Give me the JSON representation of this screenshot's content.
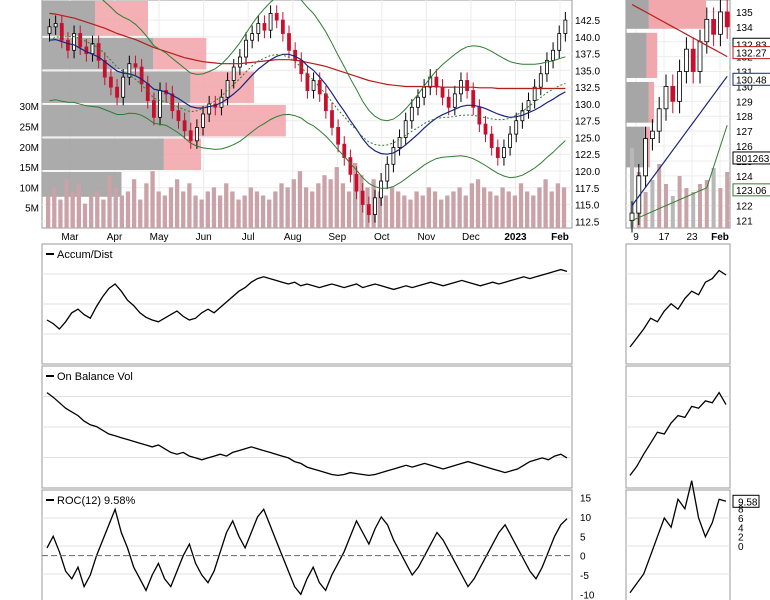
{
  "chart_data": {
    "type": "financial-multi-panel",
    "price_panel": {
      "y_ticks_right": [
        "142.5",
        "140.0",
        "137.5",
        "135.0",
        "132.5",
        "130.0",
        "127.5",
        "125.0",
        "122.5",
        "120.0",
        "117.5",
        "115.0",
        "112.5"
      ],
      "ylim": [
        111.5,
        145.5
      ],
      "volume_ticks_left": [
        "30M",
        "25M",
        "20M",
        "15M",
        "10M",
        "5M"
      ],
      "x_labels": [
        "Mar",
        "Apr",
        "May",
        "Jun",
        "Jul",
        "Aug",
        "Sep",
        "Oct",
        "Nov",
        "Dec",
        "2023",
        "Feb"
      ],
      "volume_by_price": [
        {
          "price_low": 140.0,
          "price_high": 145.5,
          "up": 0.1,
          "down": 0.2
        },
        {
          "price_low": 135.0,
          "price_high": 140.0,
          "up": 0.21,
          "down": 0.31
        },
        {
          "price_low": 130.0,
          "price_high": 135.0,
          "up": 0.28,
          "down": 0.4
        },
        {
          "price_low": 125.0,
          "price_high": 130.0,
          "up": 0.28,
          "down": 0.46
        },
        {
          "price_low": 120.0,
          "price_high": 125.0,
          "up": 0.23,
          "down": 0.3
        },
        {
          "price_low": 116.0,
          "price_high": 120.0,
          "up": 0.15,
          "down": 0.1
        }
      ],
      "close": [
        141.5,
        142.0,
        139.5,
        138.0,
        140.5,
        138.5,
        137.5,
        139.0,
        136.5,
        134.0,
        132.5,
        131.0,
        134.0,
        136.0,
        135.5,
        133.0,
        130.5,
        128.0,
        132.0,
        131.5,
        129.0,
        127.5,
        126.0,
        124.5,
        126.5,
        128.5,
        130.0,
        129.5,
        131.0,
        133.5,
        135.5,
        137.0,
        139.5,
        140.5,
        142.0,
        141.0,
        143.5,
        142.5,
        140.5,
        138.0,
        136.5,
        134.5,
        132.0,
        133.5,
        131.5,
        129.0,
        126.5,
        124.0,
        122.0,
        119.5,
        117.0,
        115.0,
        113.5,
        116.0,
        118.5,
        121.0,
        123.5,
        125.0,
        127.5,
        129.5,
        131.0,
        132.5,
        134.0,
        132.5,
        131.0,
        129.5,
        131.5,
        133.5,
        132.0,
        129.5,
        127.0,
        125.5,
        123.5,
        122.0,
        123.5,
        125.5,
        127.5,
        129.0,
        130.5,
        132.5,
        134.5,
        136.5,
        138.0,
        140.5,
        142.5
      ],
      "moving_average_1": [
        139.5,
        139.6,
        139.3,
        139.0,
        138.8,
        138.3,
        137.8,
        137.4,
        137.0,
        136.3,
        135.6,
        134.9,
        134.6,
        134.5,
        134.2,
        133.7,
        133.0,
        132.2,
        132.0,
        131.8,
        131.3,
        130.8,
        130.2,
        129.6,
        129.4,
        129.4,
        129.6,
        129.8,
        130.2,
        130.8,
        131.5,
        132.3,
        133.3,
        134.3,
        135.2,
        135.9,
        136.6,
        137.1,
        137.4,
        137.4,
        137.1,
        136.6,
        135.7,
        135.0,
        134.0,
        132.9,
        131.6,
        130.2,
        128.9,
        127.5,
        126.2,
        124.8,
        123.7,
        123.0,
        122.6,
        122.5,
        122.7,
        123.2,
        123.9,
        124.7,
        125.5,
        126.4,
        127.2,
        127.9,
        128.4,
        128.8,
        129.2,
        129.6,
        129.8,
        129.8,
        129.6,
        129.3,
        128.9,
        128.5,
        128.2,
        128.0,
        128.1,
        128.3,
        128.7,
        129.1,
        129.6,
        130.2,
        130.7,
        131.3,
        131.8
      ],
      "moving_average_2": [
        143.5,
        143.4,
        143.2,
        143.0,
        142.8,
        142.5,
        142.2,
        141.9,
        141.6,
        141.3,
        140.9,
        140.5,
        140.2,
        139.9,
        139.6,
        139.2,
        138.8,
        138.4,
        138.1,
        137.8,
        137.5,
        137.2,
        136.9,
        136.7,
        136.5,
        136.3,
        136.2,
        136.1,
        136.0,
        136.0,
        136.0,
        136.0,
        136.1,
        136.2,
        136.3,
        136.4,
        136.5,
        136.6,
        136.6,
        136.6,
        136.5,
        136.4,
        136.2,
        136.0,
        135.8,
        135.6,
        135.3,
        135.0,
        134.7,
        134.4,
        134.1,
        133.8,
        133.5,
        133.3,
        133.1,
        132.9,
        132.8,
        132.7,
        132.6,
        132.6,
        132.6,
        132.6,
        132.6,
        132.6,
        132.5,
        132.5,
        132.5,
        132.5,
        132.5,
        132.5,
        132.4,
        132.4,
        132.4,
        132.3,
        132.3,
        132.3,
        132.3,
        132.3,
        132.3,
        132.3,
        132.3,
        132.3,
        132.3,
        132.3,
        132.3
      ],
      "volume_millions": [
        8,
        10,
        7,
        12,
        9,
        11,
        6,
        8,
        9,
        7,
        13,
        10,
        8,
        9,
        12,
        7,
        11,
        14,
        9,
        8,
        10,
        12,
        9,
        11,
        8,
        7,
        9,
        10,
        8,
        11,
        9,
        7,
        8,
        10,
        9,
        8,
        7,
        9,
        11,
        10,
        12,
        14,
        10,
        9,
        11,
        13,
        12,
        15,
        11,
        9,
        16,
        13,
        10,
        12,
        9,
        8,
        10,
        9,
        8,
        7,
        9,
        8,
        10,
        9,
        7,
        8,
        9,
        10,
        8,
        11,
        12,
        10,
        9,
        8,
        10,
        9,
        8,
        11,
        9,
        8,
        10,
        12,
        9,
        11,
        10
      ]
    },
    "small_price_panel": {
      "y_ticks_right": [
        "135",
        "134",
        "133",
        "132",
        "131",
        "130",
        "129",
        "128",
        "127",
        "126",
        "125",
        "124",
        "123",
        "122",
        "121"
      ],
      "x_labels": [
        "9",
        "17",
        "23",
        "Feb"
      ],
      "value_labels": [
        "132.83",
        "132.27",
        "130.48",
        "801263",
        "123.06"
      ]
    },
    "accum_dist": {
      "title": "Accum/Dist",
      "values": [
        0.4,
        0.36,
        0.3,
        0.38,
        0.48,
        0.52,
        0.46,
        0.42,
        0.55,
        0.66,
        0.75,
        0.8,
        0.72,
        0.62,
        0.56,
        0.48,
        0.43,
        0.4,
        0.38,
        0.42,
        0.46,
        0.5,
        0.44,
        0.4,
        0.42,
        0.48,
        0.52,
        0.48,
        0.54,
        0.6,
        0.66,
        0.72,
        0.76,
        0.82,
        0.86,
        0.88,
        0.86,
        0.84,
        0.82,
        0.8,
        0.82,
        0.78,
        0.8,
        0.78,
        0.76,
        0.78,
        0.8,
        0.78,
        0.76,
        0.78,
        0.8,
        0.76,
        0.78,
        0.8,
        0.78,
        0.76,
        0.74,
        0.76,
        0.78,
        0.76,
        0.78,
        0.8,
        0.82,
        0.8,
        0.78,
        0.8,
        0.82,
        0.84,
        0.82,
        0.8,
        0.78,
        0.8,
        0.82,
        0.8,
        0.82,
        0.84,
        0.86,
        0.88,
        0.86,
        0.88,
        0.9,
        0.92,
        0.94,
        0.96,
        0.94
      ],
      "small_values": [
        0.1,
        0.2,
        0.3,
        0.42,
        0.38,
        0.5,
        0.58,
        0.52,
        0.64,
        0.72,
        0.68,
        0.82,
        0.86,
        0.95,
        0.9
      ]
    },
    "on_balance_volume": {
      "title": "On Balance Vol",
      "values": [
        0.95,
        0.9,
        0.84,
        0.78,
        0.74,
        0.7,
        0.64,
        0.6,
        0.58,
        0.54,
        0.5,
        0.48,
        0.46,
        0.44,
        0.42,
        0.4,
        0.38,
        0.36,
        0.38,
        0.34,
        0.3,
        0.28,
        0.3,
        0.26,
        0.24,
        0.22,
        0.24,
        0.26,
        0.28,
        0.26,
        0.3,
        0.32,
        0.34,
        0.36,
        0.34,
        0.32,
        0.3,
        0.28,
        0.26,
        0.24,
        0.2,
        0.18,
        0.14,
        0.12,
        0.1,
        0.08,
        0.06,
        0.05,
        0.06,
        0.08,
        0.07,
        0.06,
        0.05,
        0.06,
        0.08,
        0.1,
        0.12,
        0.14,
        0.16,
        0.14,
        0.16,
        0.18,
        0.16,
        0.14,
        0.12,
        0.14,
        0.16,
        0.18,
        0.2,
        0.18,
        0.16,
        0.14,
        0.12,
        0.1,
        0.08,
        0.1,
        0.12,
        0.16,
        0.2,
        0.22,
        0.24,
        0.22,
        0.26,
        0.28,
        0.24
      ],
      "small_values": [
        0.05,
        0.15,
        0.28,
        0.4,
        0.52,
        0.5,
        0.62,
        0.7,
        0.68,
        0.8,
        0.78,
        0.86,
        0.84,
        0.95,
        0.82
      ]
    },
    "roc": {
      "title": "ROC(12) 9.58%",
      "y_ticks_right": [
        "15",
        "10",
        "5",
        "0",
        "-5",
        "-10"
      ],
      "ylim": [
        -12,
        17
      ],
      "values": [
        2,
        5,
        1,
        -4,
        -6,
        -3,
        -8,
        -5,
        0,
        4,
        8,
        12,
        6,
        2,
        -3,
        -6,
        -9,
        -5,
        -2,
        -6,
        -8,
        -4,
        0,
        3,
        -2,
        -5,
        -7,
        -4,
        1,
        6,
        9,
        5,
        2,
        6,
        10,
        12,
        8,
        4,
        0,
        -4,
        -8,
        -10,
        -6,
        -3,
        -7,
        -9,
        -5,
        -2,
        1,
        5,
        9,
        6,
        3,
        7,
        10,
        8,
        4,
        1,
        -2,
        -5,
        -3,
        0,
        3,
        6,
        4,
        1,
        -2,
        -5,
        -8,
        -6,
        -3,
        0,
        3,
        6,
        8,
        5,
        2,
        -1,
        -4,
        -6,
        -3,
        1,
        5,
        8,
        9.58
      ],
      "small_values": [
        -10,
        -8,
        -6,
        -2,
        2,
        6,
        4,
        10,
        8,
        14,
        6,
        2,
        5,
        10,
        9.58
      ],
      "small_y_ticks_right": [
        "9.58",
        "8",
        "6",
        "4",
        "2",
        "0"
      ]
    },
    "colors": {
      "up_candle": "#000000",
      "down_candle": "#c8102e",
      "bollinger": "#2e7d32",
      "moving_average_1": "#1a237e",
      "moving_average_2": "#b71c1c",
      "volume_bar": "#c9a3a8",
      "volume_by_price_up": "#a6a6a6",
      "volume_by_price_down": "#f2a7ad",
      "indicator_line": "#000000"
    }
  }
}
